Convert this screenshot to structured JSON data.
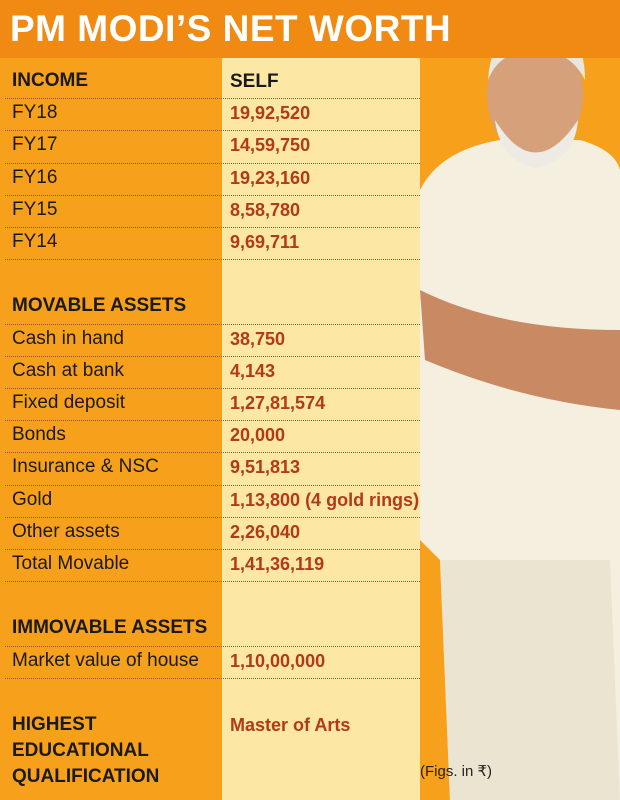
{
  "title": "PM MODI’S NET WORTH",
  "table": {
    "header": [
      "INCOME",
      "SELF"
    ],
    "income": [
      [
        "FY18",
        "19,92,520"
      ],
      [
        "FY17",
        "14,59,750"
      ],
      [
        "FY16",
        "19,23,160"
      ],
      [
        "FY15",
        "8,58,780"
      ],
      [
        "FY14",
        "9,69,711"
      ]
    ],
    "movable_title": "MOVABLE ASSETS",
    "movable": [
      [
        "Cash in hand",
        "38,750"
      ],
      [
        "Cash at bank",
        "4,143"
      ],
      [
        "Fixed deposit",
        "1,27,81,574"
      ],
      [
        "Bonds",
        "20,000"
      ],
      [
        "Insurance & NSC",
        "9,51,813"
      ],
      [
        "Gold",
        "1,13,800 (4 gold rings)"
      ],
      [
        "Other assets",
        "2,26,040"
      ],
      [
        "Total Movable",
        "1,41,36,119"
      ]
    ],
    "immovable_title": "IMMOVABLE ASSETS",
    "immovable": [
      [
        "Market value of house",
        "1,10,00,000"
      ]
    ],
    "qualification_label": [
      "HIGHEST",
      "EDUCATIONAL",
      "QUALIFICATION"
    ],
    "qualification_value": "Master of Arts"
  },
  "footnote": "(Figs. in ₹)"
}
